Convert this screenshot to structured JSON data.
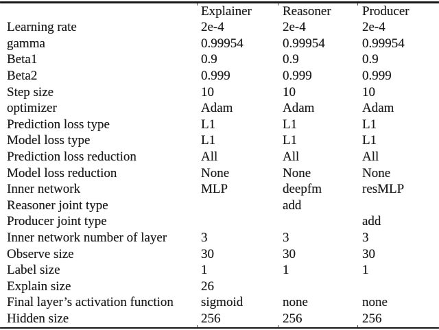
{
  "colors": {
    "background": "#ffffff",
    "text": "#1b1b1b",
    "rule": "#161616"
  },
  "table": {
    "columns": [
      "Explainer",
      "Reasoner",
      "Producer"
    ],
    "rows": [
      {
        "label": "Learning rate",
        "values": [
          "2e-4",
          "2e-4",
          "2e-4"
        ]
      },
      {
        "label": "gamma",
        "values": [
          "0.99954",
          "0.99954",
          "0.99954"
        ]
      },
      {
        "label": "Beta1",
        "values": [
          "0.9",
          "0.9",
          "0.9"
        ]
      },
      {
        "label": "Beta2",
        "values": [
          "0.999",
          "0.999",
          "0.999"
        ]
      },
      {
        "label": "Step size",
        "values": [
          "10",
          "10",
          "10"
        ]
      },
      {
        "label": "optimizer",
        "values": [
          "Adam",
          "Adam",
          "Adam"
        ]
      },
      {
        "label": "Prediction loss type",
        "values": [
          "L1",
          "L1",
          "L1"
        ]
      },
      {
        "label": "Model loss type",
        "values": [
          "L1",
          "L1",
          "L1"
        ]
      },
      {
        "label": "Prediction loss reduction",
        "values": [
          "All",
          "All",
          "All"
        ]
      },
      {
        "label": "Model loss reduction",
        "values": [
          "None",
          "None",
          "None"
        ]
      },
      {
        "label": "Inner network",
        "values": [
          "MLP",
          "deepfm",
          "resMLP"
        ]
      },
      {
        "label": "Reasoner joint type",
        "values": [
          "",
          "add",
          ""
        ]
      },
      {
        "label": "Producer joint type",
        "values": [
          "",
          "",
          "add"
        ]
      },
      {
        "label": "Inner network number of layer",
        "values": [
          "3",
          "3",
          "3"
        ]
      },
      {
        "label": "Observe size",
        "values": [
          "30",
          "30",
          "30"
        ]
      },
      {
        "label": "Label size",
        "values": [
          "1",
          "1",
          "1"
        ]
      },
      {
        "label": "Explain size",
        "values": [
          "26",
          "",
          ""
        ]
      },
      {
        "label": "Final layer’s activation function",
        "values": [
          "sigmoid",
          "none",
          "none"
        ]
      },
      {
        "label": "Hidden size",
        "values": [
          "256",
          "256",
          "256"
        ]
      }
    ]
  }
}
